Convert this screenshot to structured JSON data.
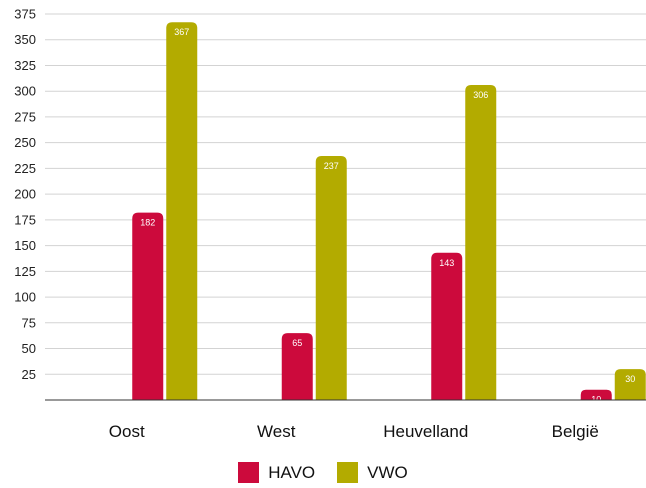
{
  "chart_data": {
    "type": "bar",
    "categories": [
      "Oost",
      "West",
      "Heuvelland",
      "België"
    ],
    "series": [
      {
        "name": "HAVO",
        "values": [
          182,
          65,
          143,
          10
        ],
        "color": "#cc0a3c"
      },
      {
        "name": "VWO",
        "values": [
          367,
          237,
          306,
          30
        ],
        "color": "#b3ab00"
      }
    ],
    "yticks": [
      25,
      50,
      75,
      100,
      125,
      150,
      175,
      200,
      225,
      250,
      275,
      300,
      325,
      350,
      375
    ],
    "ylim": [
      0,
      375
    ],
    "grid": true,
    "legend_position": "bottom",
    "data_labels": true
  }
}
